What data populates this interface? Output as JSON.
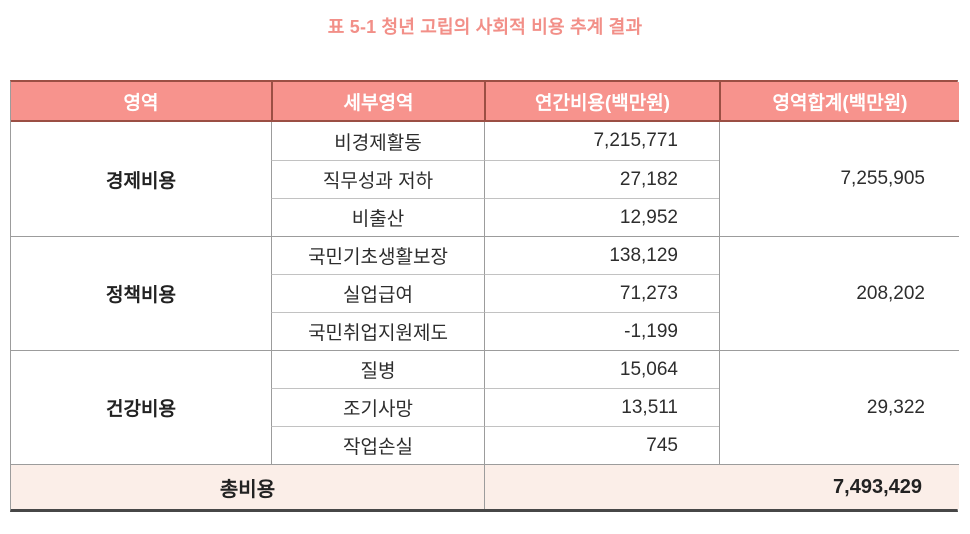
{
  "title": "표 5-1 청년 고립의 사회적 비용 추계 결과",
  "colors": {
    "title_text": "#f28f88",
    "header_bg": "#f7938d",
    "header_text": "#ffffff",
    "header_border": "#9b4f44",
    "grid_border": "#9c9c9c",
    "subrow_border": "#c2c2c2",
    "bottom_border": "#474747",
    "total_row_bg": "#fbeee8",
    "body_text": "#2d2d2d"
  },
  "table": {
    "columns": [
      "영역",
      "세부영역",
      "연간비용(백만원)",
      "영역합계(백만원)"
    ],
    "groups": [
      {
        "area": "경제비용",
        "area_total": "7,255,905",
        "rows": [
          {
            "detail": "비경제활동",
            "annual": "7,215,771"
          },
          {
            "detail": "직무성과 저하",
            "annual": "27,182"
          },
          {
            "detail": "비출산",
            "annual": "12,952"
          }
        ]
      },
      {
        "area": "정책비용",
        "area_total": "208,202",
        "rows": [
          {
            "detail": "국민기초생활보장",
            "annual": "138,129"
          },
          {
            "detail": "실업급여",
            "annual": "71,273"
          },
          {
            "detail": "국민취업지원제도",
            "annual": "-1,199"
          }
        ]
      },
      {
        "area": "건강비용",
        "area_total": "29,322",
        "rows": [
          {
            "detail": "질병",
            "annual": "15,064"
          },
          {
            "detail": "조기사망",
            "annual": "13,511"
          },
          {
            "detail": "작업손실",
            "annual": "745"
          }
        ]
      }
    ],
    "total": {
      "label": "총비용",
      "value": "7,493,429"
    }
  }
}
